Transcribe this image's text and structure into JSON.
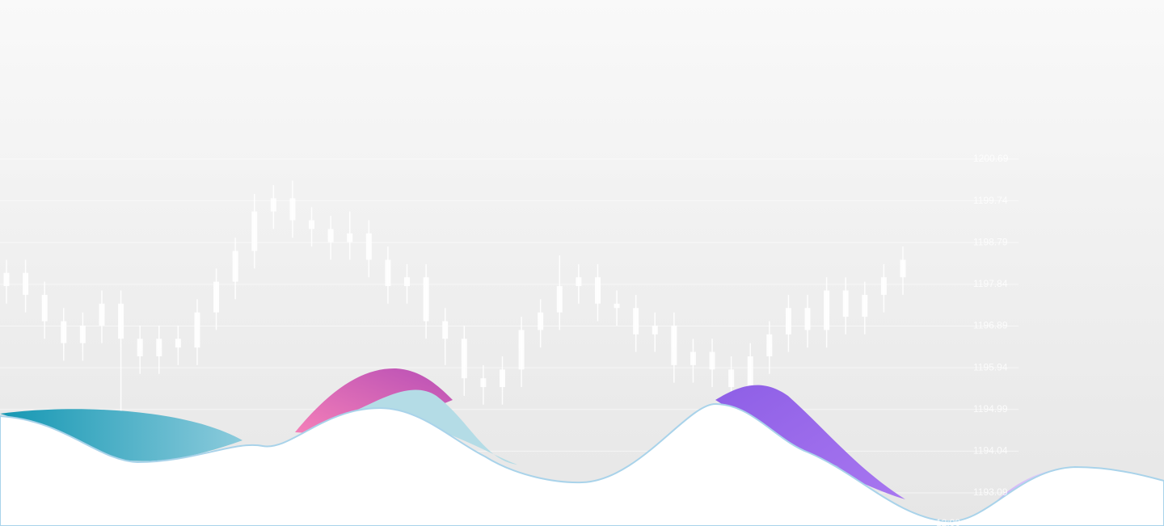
{
  "chart_data": {
    "type": "candlestick",
    "open": [
      1197.8,
      1198.1,
      1197.6,
      1197.0,
      1196.5,
      1196.9,
      1197.4,
      1196.6,
      1196.2,
      1196.6,
      1196.4,
      1197.2,
      1197.9,
      1198.6,
      1199.5,
      1199.8,
      1199.3,
      1199.1,
      1198.8,
      1199.0,
      1198.4,
      1197.8,
      1198.0,
      1197.0,
      1196.6,
      1195.7,
      1195.5,
      1195.9,
      1196.8,
      1197.2,
      1197.8,
      1198.0,
      1197.4,
      1197.3,
      1196.7,
      1196.9,
      1196.0,
      1196.3,
      1195.9,
      1195.5,
      1196.2,
      1196.7,
      1197.3,
      1196.8,
      1197.7,
      1197.1,
      1197.6,
      1198.0
    ],
    "high": [
      1198.4,
      1198.4,
      1197.9,
      1197.3,
      1197.2,
      1197.7,
      1197.7,
      1196.9,
      1196.9,
      1196.9,
      1197.5,
      1198.2,
      1198.9,
      1199.9,
      1200.1,
      1200.2,
      1199.6,
      1199.4,
      1199.5,
      1199.3,
      1198.7,
      1198.3,
      1198.3,
      1197.3,
      1196.9,
      1196.0,
      1196.2,
      1197.1,
      1197.5,
      1198.5,
      1198.3,
      1198.3,
      1197.7,
      1197.6,
      1197.2,
      1197.2,
      1196.6,
      1196.6,
      1196.2,
      1196.5,
      1197.0,
      1197.6,
      1197.6,
      1198.0,
      1198.0,
      1197.9,
      1198.3,
      1198.7
    ],
    "low": [
      1197.4,
      1197.2,
      1196.6,
      1196.1,
      1196.1,
      1196.5,
      1194.4,
      1195.8,
      1195.8,
      1196.0,
      1196.0,
      1196.8,
      1197.5,
      1198.2,
      1199.1,
      1198.9,
      1198.7,
      1198.4,
      1198.4,
      1198.0,
      1197.4,
      1197.4,
      1196.6,
      1196.0,
      1195.3,
      1195.1,
      1195.1,
      1195.5,
      1196.4,
      1196.8,
      1197.4,
      1197.0,
      1196.9,
      1196.3,
      1196.3,
      1195.6,
      1195.6,
      1195.5,
      1194.9,
      1195.1,
      1195.8,
      1196.3,
      1196.4,
      1196.4,
      1196.7,
      1196.7,
      1197.2,
      1197.6
    ],
    "close": [
      1198.1,
      1197.6,
      1197.0,
      1196.5,
      1196.9,
      1197.4,
      1196.6,
      1196.2,
      1196.6,
      1196.4,
      1197.2,
      1197.9,
      1198.6,
      1199.5,
      1199.8,
      1199.3,
      1199.1,
      1198.8,
      1199.0,
      1198.4,
      1197.8,
      1198.0,
      1197.0,
      1196.6,
      1195.7,
      1195.5,
      1195.9,
      1196.8,
      1197.2,
      1197.8,
      1198.0,
      1197.4,
      1197.3,
      1196.7,
      1196.9,
      1196.0,
      1196.3,
      1195.9,
      1195.5,
      1196.2,
      1196.7,
      1197.3,
      1196.8,
      1197.7,
      1197.1,
      1197.6,
      1198.0,
      1198.4
    ],
    "color": "#ffffff",
    "ylim": [
      1193.09,
      1200.69
    ],
    "yticks": [
      1193.09,
      1194.04,
      1194.99,
      1195.94,
      1196.89,
      1197.84,
      1198.79,
      1199.74,
      1200.69
    ],
    "xtick_labels": [
      "12:00"
    ],
    "grid": true
  }
}
